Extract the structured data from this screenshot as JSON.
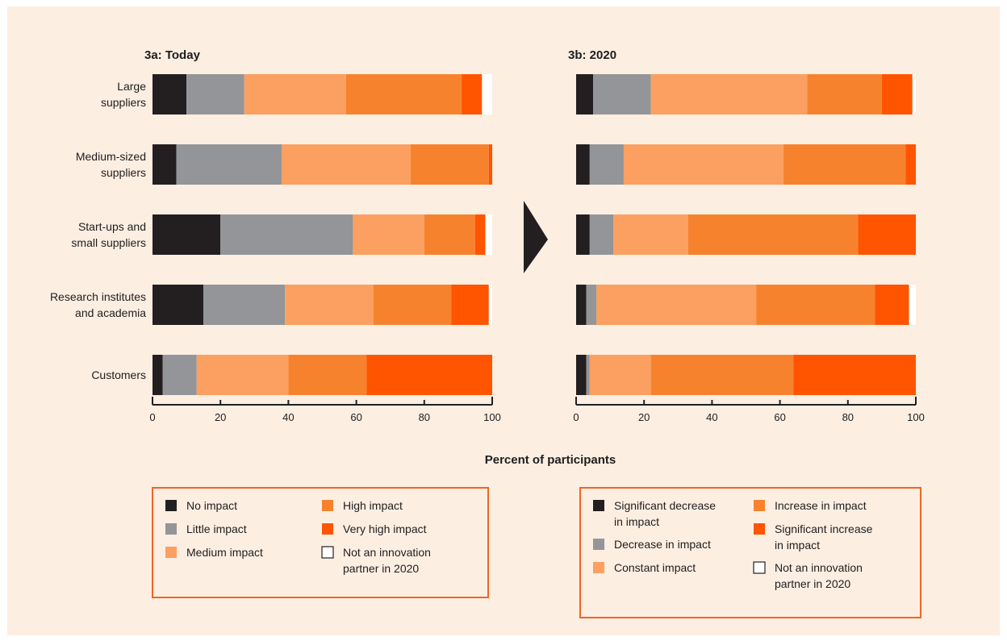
{
  "background_color": "#fdeee2",
  "legend_border_color": "#f26522",
  "xlabel": "Percent of participants",
  "arrow_icon": "chevron-right-icon",
  "chart_data": [
    {
      "type": "bar",
      "orientation": "horizontal",
      "stacked": true,
      "title": "3a: Today",
      "categories": [
        "Large suppliers",
        "Medium-sized suppliers",
        "Start-ups and small suppliers",
        "Research institutes and academia",
        "Customers"
      ],
      "xlim": [
        0,
        100
      ],
      "xticks": [
        "0",
        "20",
        "40",
        "60",
        "80",
        "100"
      ],
      "xlabel": "Percent of participants",
      "series": [
        {
          "name": "No impact",
          "color": "#231f20",
          "values": [
            10,
            7,
            20,
            15,
            3
          ]
        },
        {
          "name": "Little impact",
          "color": "#939598",
          "values": [
            17,
            31,
            39,
            24,
            10
          ]
        },
        {
          "name": "Medium impact",
          "color": "#fba060",
          "values": [
            30,
            38,
            21,
            26,
            27
          ]
        },
        {
          "name": "High impact",
          "color": "#f7822e",
          "values": [
            34,
            23,
            15,
            23,
            23
          ]
        },
        {
          "name": "Very high impact",
          "color": "#ff5400",
          "values": [
            6,
            1,
            3,
            11,
            37
          ]
        },
        {
          "name": "Not an innovation partner in 2020",
          "color": "#ffffff",
          "values": [
            3,
            0,
            2,
            1,
            0
          ]
        }
      ],
      "legend": {
        "columns": [
          [
            "No impact",
            "Little impact",
            "Medium impact"
          ],
          [
            "High impact",
            "Very high impact",
            "Not an innovation partner in 2020"
          ]
        ],
        "lines": [
          [
            "No impact",
            "Little impact",
            "Medium impact"
          ],
          [
            [
              "High impact"
            ],
            [
              "Very high impact"
            ],
            [
              "Not an innovation",
              "partner in 2020"
            ]
          ]
        ]
      }
    },
    {
      "type": "bar",
      "orientation": "horizontal",
      "stacked": true,
      "title": "3b: 2020",
      "categories": [
        "Large suppliers",
        "Medium-sized suppliers",
        "Start-ups and small suppliers",
        "Research institutes and academia",
        "Customers"
      ],
      "xlim": [
        0,
        100
      ],
      "xticks": [
        "0",
        "20",
        "40",
        "60",
        "80",
        "100"
      ],
      "xlabel": "Percent of participants",
      "series": [
        {
          "name": "Significant decrease in impact",
          "color": "#231f20",
          "values": [
            5,
            4,
            4,
            3,
            3
          ]
        },
        {
          "name": "Decrease in impact",
          "color": "#939598",
          "values": [
            17,
            10,
            7,
            3,
            1
          ]
        },
        {
          "name": "Constant impact",
          "color": "#fba060",
          "values": [
            46,
            47,
            22,
            47,
            18
          ]
        },
        {
          "name": "Increase in impact",
          "color": "#f7822e",
          "values": [
            22,
            36,
            50,
            35,
            42
          ]
        },
        {
          "name": "Significant increase in impact",
          "color": "#ff5400",
          "values": [
            9,
            3,
            17,
            10,
            36
          ]
        },
        {
          "name": "Not an innovation partner in 2020",
          "color": "#ffffff",
          "values": [
            1,
            0,
            0,
            2,
            0
          ]
        }
      ],
      "legend": {
        "lines": [
          [
            [
              "Significant decrease",
              "in impact"
            ],
            [
              "Decrease in impact"
            ],
            [
              "Constant impact"
            ]
          ],
          [
            [
              "Increase in impact"
            ],
            [
              "Significant increase",
              "in impact"
            ],
            [
              "Not an innovation",
              "partner in 2020"
            ]
          ]
        ]
      }
    }
  ],
  "category_lines": [
    [
      "Large",
      "suppliers"
    ],
    [
      "Medium-sized",
      "suppliers"
    ],
    [
      "Start-ups and",
      "small suppliers"
    ],
    [
      "Research institutes",
      "and academia"
    ],
    [
      "Customers"
    ]
  ]
}
